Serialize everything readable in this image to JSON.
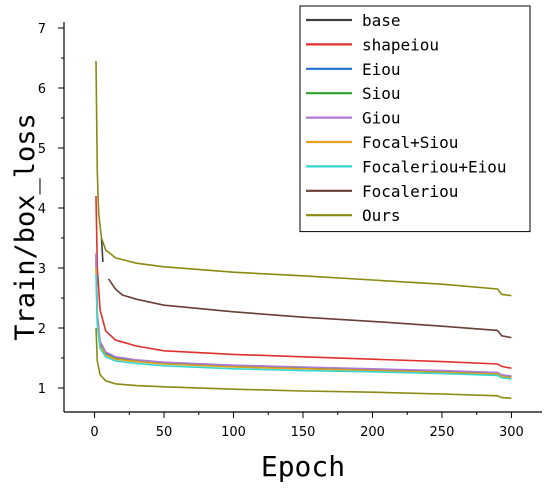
{
  "chart_data": {
    "type": "line",
    "xlabel": "Epoch",
    "ylabel": "Train/box_loss",
    "xlim": [
      -22,
      322
    ],
    "ylim": [
      0.6,
      7.1
    ],
    "xticks": [
      0,
      50,
      100,
      150,
      200,
      250,
      300
    ],
    "yticks": [
      1,
      2,
      3,
      4,
      5,
      6,
      7
    ],
    "legend_position": "top-right",
    "grid": false,
    "series": [
      {
        "name": "base",
        "color": "#404040",
        "points": [
          [
            5,
            3.5
          ],
          [
            6,
            3.1
          ]
        ]
      },
      {
        "name": "shapeiou",
        "color": "#e0302e",
        "points": [
          [
            1,
            4.2
          ],
          [
            2,
            3.0
          ],
          [
            4,
            2.3
          ],
          [
            8,
            1.95
          ],
          [
            15,
            1.8
          ],
          [
            30,
            1.7
          ],
          [
            50,
            1.62
          ],
          [
            100,
            1.56
          ],
          [
            150,
            1.52
          ],
          [
            200,
            1.48
          ],
          [
            250,
            1.44
          ],
          [
            290,
            1.4
          ],
          [
            293,
            1.36
          ],
          [
            300,
            1.33
          ]
        ]
      },
      {
        "name": "Eiou",
        "color": "#1e6fd0",
        "points": [
          [
            1,
            3.2
          ],
          [
            2,
            2.2
          ],
          [
            4,
            1.75
          ],
          [
            8,
            1.58
          ],
          [
            15,
            1.5
          ],
          [
            30,
            1.46
          ],
          [
            50,
            1.42
          ],
          [
            100,
            1.37
          ],
          [
            150,
            1.34
          ],
          [
            200,
            1.31
          ],
          [
            250,
            1.28
          ],
          [
            290,
            1.25
          ],
          [
            293,
            1.21
          ],
          [
            300,
            1.19
          ]
        ]
      },
      {
        "name": "Siou",
        "color": "#2ca02c",
        "points": [
          [
            1,
            3.1
          ],
          [
            2,
            2.15
          ],
          [
            4,
            1.72
          ],
          [
            8,
            1.56
          ],
          [
            15,
            1.49
          ],
          [
            30,
            1.45
          ],
          [
            50,
            1.41
          ],
          [
            100,
            1.36
          ],
          [
            150,
            1.33
          ],
          [
            200,
            1.3
          ],
          [
            250,
            1.27
          ],
          [
            290,
            1.24
          ],
          [
            293,
            1.2
          ],
          [
            300,
            1.18
          ]
        ]
      },
      {
        "name": "Giou",
        "color": "#b07ad8",
        "points": [
          [
            1,
            3.25
          ],
          [
            2,
            2.25
          ],
          [
            4,
            1.78
          ],
          [
            8,
            1.6
          ],
          [
            15,
            1.52
          ],
          [
            30,
            1.47
          ],
          [
            50,
            1.43
          ],
          [
            100,
            1.38
          ],
          [
            150,
            1.35
          ],
          [
            200,
            1.32
          ],
          [
            250,
            1.29
          ],
          [
            290,
            1.26
          ],
          [
            293,
            1.22
          ],
          [
            300,
            1.2
          ]
        ]
      },
      {
        "name": "Focal+Siou",
        "color": "#e6a020",
        "points": [
          [
            1,
            3.0
          ],
          [
            2,
            2.1
          ],
          [
            4,
            1.7
          ],
          [
            8,
            1.55
          ],
          [
            15,
            1.48
          ],
          [
            30,
            1.44
          ],
          [
            50,
            1.4
          ],
          [
            100,
            1.35
          ],
          [
            150,
            1.32
          ],
          [
            200,
            1.29
          ],
          [
            250,
            1.26
          ],
          [
            290,
            1.23
          ],
          [
            293,
            1.19
          ],
          [
            300,
            1.17
          ]
        ]
      },
      {
        "name": "Focaleriou+Eiou",
        "color": "#34d8d0",
        "points": [
          [
            1,
            2.9
          ],
          [
            2,
            2.05
          ],
          [
            4,
            1.66
          ],
          [
            8,
            1.52
          ],
          [
            15,
            1.45
          ],
          [
            30,
            1.41
          ],
          [
            50,
            1.37
          ],
          [
            100,
            1.32
          ],
          [
            150,
            1.29
          ],
          [
            200,
            1.27
          ],
          [
            250,
            1.24
          ],
          [
            290,
            1.21
          ],
          [
            293,
            1.17
          ],
          [
            300,
            1.15
          ]
        ]
      },
      {
        "name": "Focaleriou",
        "color": "#6b3e38",
        "points": [
          [
            10,
            2.82
          ],
          [
            15,
            2.65
          ],
          [
            20,
            2.55
          ],
          [
            30,
            2.48
          ],
          [
            50,
            2.38
          ],
          [
            100,
            2.27
          ],
          [
            150,
            2.18
          ],
          [
            200,
            2.11
          ],
          [
            250,
            2.03
          ],
          [
            290,
            1.96
          ],
          [
            293,
            1.87
          ],
          [
            300,
            1.84
          ]
        ]
      },
      {
        "name": "Ours",
        "color": "#8a8a10",
        "points": [
          [
            1,
            6.45
          ],
          [
            2,
            4.6
          ],
          [
            3,
            3.9
          ],
          [
            5,
            3.5
          ],
          [
            8,
            3.3
          ],
          [
            15,
            3.17
          ],
          [
            30,
            3.08
          ],
          [
            50,
            3.02
          ],
          [
            100,
            2.93
          ],
          [
            150,
            2.87
          ],
          [
            200,
            2.8
          ],
          [
            250,
            2.73
          ],
          [
            290,
            2.65
          ],
          [
            293,
            2.56
          ],
          [
            300,
            2.54
          ]
        ]
      },
      {
        "name": "",
        "color": "#8a8a10",
        "points": [
          [
            1,
            2.0
          ],
          [
            2,
            1.45
          ],
          [
            4,
            1.22
          ],
          [
            8,
            1.12
          ],
          [
            15,
            1.07
          ],
          [
            30,
            1.04
          ],
          [
            50,
            1.02
          ],
          [
            100,
            0.98
          ],
          [
            150,
            0.95
          ],
          [
            200,
            0.93
          ],
          [
            250,
            0.9
          ],
          [
            290,
            0.87
          ],
          [
            293,
            0.84
          ],
          [
            300,
            0.83
          ]
        ]
      }
    ]
  }
}
